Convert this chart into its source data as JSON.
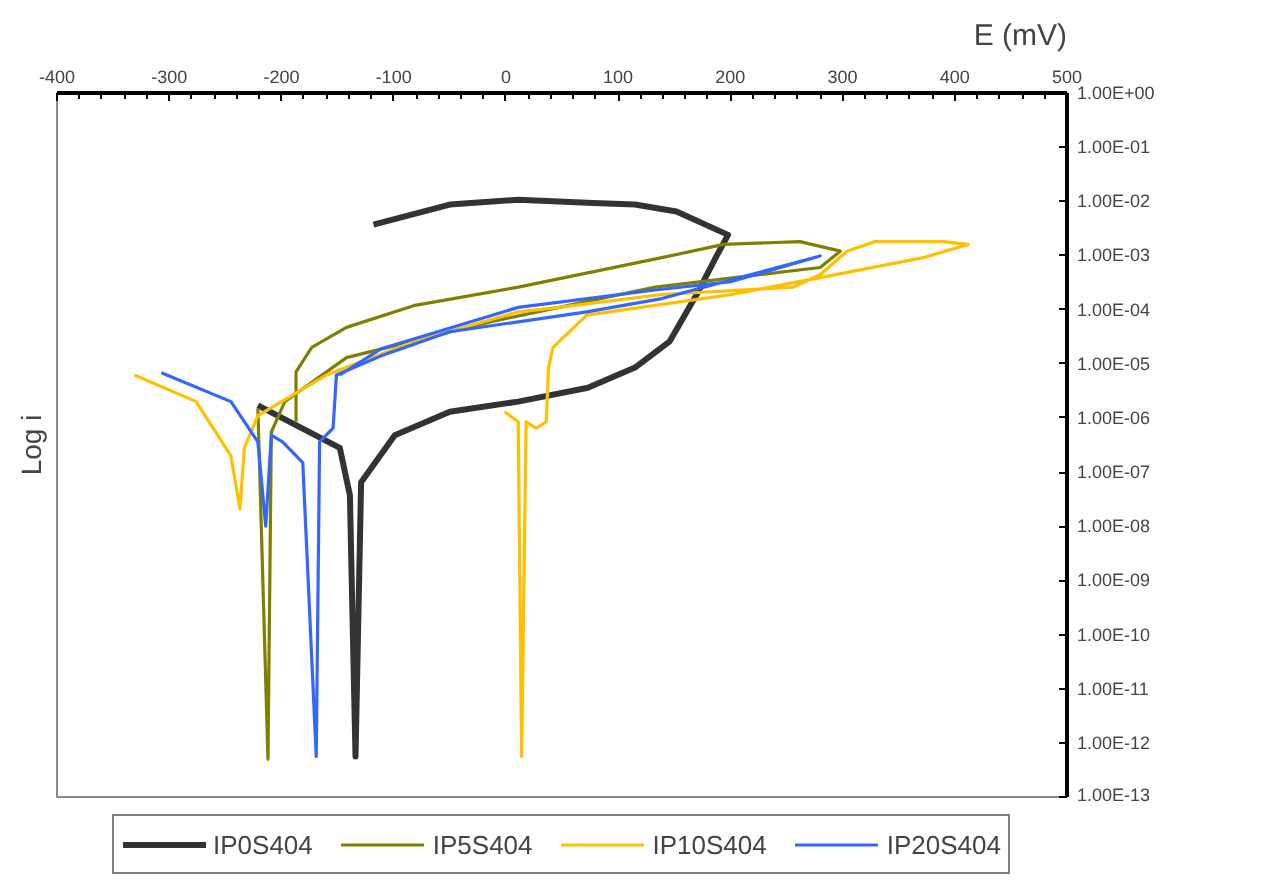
{
  "chart_data": {
    "type": "line",
    "xlabel": "E (mV)",
    "ylabel": "Log i",
    "log": "y",
    "legend": "bottom",
    "xlim": [
      -400,
      500
    ],
    "xticks": [
      -400,
      -300,
      -200,
      -100,
      0,
      100,
      200,
      300,
      400,
      500
    ],
    "ylim": [
      1e-13,
      1
    ],
    "yticks": [
      {
        "value": 1,
        "label": "1.00E+00"
      },
      {
        "value": 0.1,
        "label": "1.00E-01"
      },
      {
        "value": 0.01,
        "label": "1.00E-02"
      },
      {
        "value": 0.001,
        "label": "1.00E-03"
      },
      {
        "value": 0.0001,
        "label": "1.00E-04"
      },
      {
        "value": 1e-05,
        "label": "1.00E-05"
      },
      {
        "value": 1e-06,
        "label": "1.00E-06"
      },
      {
        "value": 1e-07,
        "label": "1.00E-07"
      },
      {
        "value": 1e-08,
        "label": "1.00E-08"
      },
      {
        "value": 1e-09,
        "label": "1.00E-09"
      },
      {
        "value": 1e-10,
        "label": "1.00E-10"
      },
      {
        "value": 1e-11,
        "label": "1.00E-11"
      },
      {
        "value": 1e-12,
        "label": "1.00E-12"
      },
      {
        "value": 1e-13,
        "label": "1.00E-13"
      }
    ],
    "series": [
      {
        "name": "IP0S404",
        "color": "#333333",
        "x": [
          -221,
          -148,
          -139,
          -134,
          -129,
          -99,
          -50,
          11,
          73,
          115,
          146,
          170,
          188,
          198,
          152,
          115,
          78,
          11,
          -50,
          -118
        ],
        "values": [
          1.7e-06,
          2.8e-07,
          3.7e-08,
          5.6e-13,
          6.5e-08,
          4.8e-07,
          1.3e-06,
          2e-06,
          3.6e-06,
          8.5e-06,
          2.6e-05,
          0.00019,
          0.001,
          0.0024,
          0.0065,
          0.0087,
          0.0093,
          0.0107,
          0.0087,
          0.0037
        ]
      },
      {
        "name": "IP5S404",
        "color": "#808000",
        "x": [
          -221,
          -212,
          -209,
          -197,
          -142,
          -13,
          133,
          280,
          298,
          262,
          194,
          139,
          11,
          -81,
          -142,
          -173,
          -187,
          -187
        ],
        "values": [
          1.5e-06,
          5e-13,
          5.5e-07,
          2e-06,
          1.3e-05,
          6e-05,
          0.00026,
          0.0006,
          0.0012,
          0.0018,
          0.0016,
          0.00091,
          0.00026,
          0.00012,
          4.7e-05,
          2e-05,
          7.1e-06,
          8.5e-07
        ]
      },
      {
        "name": "IP10S404",
        "color": "#ffc000",
        "x": [
          -331,
          -276,
          -245,
          -237,
          -233,
          -221,
          -160,
          -81,
          11,
          47,
          139,
          256,
          280,
          304,
          329,
          390,
          412,
          372,
          280,
          201,
          133,
          72,
          42,
          38,
          36,
          27,
          18,
          14,
          11,
          -1
        ],
        "values": [
          6.2e-06,
          2e-06,
          2e-07,
          2.1e-08,
          2.8e-07,
          1.1e-06,
          6.2e-06,
          2.6e-05,
          9.1e-05,
          0.00011,
          0.00019,
          0.00026,
          0.00044,
          0.0012,
          0.0018,
          0.0018,
          0.0016,
          0.00091,
          0.00039,
          0.00019,
          0.00012,
          7.9e-05,
          2e-05,
          8.5e-06,
          8.5e-07,
          6.5e-07,
          8.5e-07,
          5.6e-13,
          8.5e-07,
          1.3e-06
        ]
      },
      {
        "name": "IP20S404",
        "color": "#3366ff",
        "x": [
          -307,
          -245,
          -221,
          -214,
          -209,
          -199,
          -181,
          -169,
          -166,
          -154,
          -151,
          -111,
          -50,
          72,
          139,
          280,
          201,
          133,
          11,
          -111,
          -148
        ],
        "values": [
          6.8e-06,
          2e-06,
          3.6e-07,
          1e-08,
          4.8e-07,
          3.6e-07,
          1.5e-07,
          5.6e-13,
          3.6e-07,
          6.5e-07,
          6.2e-06,
          1.4e-05,
          3.9e-05,
          9.1e-05,
          0.00016,
          0.00098,
          0.00033,
          0.00023,
          0.00011,
          1.9e-05,
          6.2e-06
        ]
      }
    ]
  }
}
